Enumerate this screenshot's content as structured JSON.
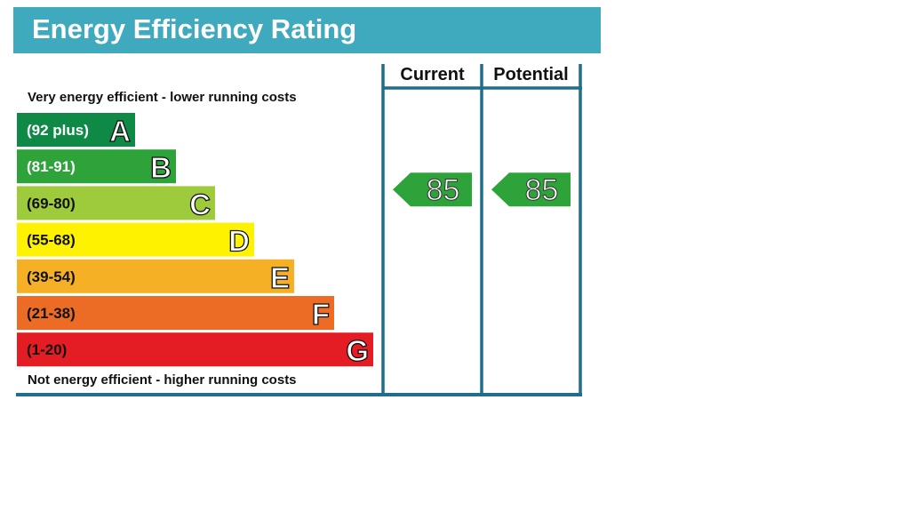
{
  "title": "Energy Efficiency Rating",
  "colors": {
    "title_bar": "#3fa9bd",
    "frame": "#1e6e8c"
  },
  "chart_data": {
    "type": "bar",
    "title": "Energy Efficiency Rating",
    "top_note": "Very energy efficient - lower running costs",
    "bottom_note": "Not energy efficient - higher running costs",
    "bands": [
      {
        "letter": "A",
        "range": "(92 plus)",
        "color": "#0f8a46",
        "text_color": "#ffffff"
      },
      {
        "letter": "B",
        "range": "(81-91)",
        "color": "#2ea33a",
        "text_color": "#ffffff"
      },
      {
        "letter": "C",
        "range": "(69-80)",
        "color": "#9dcb3c",
        "text_color": "#111111"
      },
      {
        "letter": "D",
        "range": "(55-68)",
        "color": "#fff200",
        "text_color": "#111111"
      },
      {
        "letter": "E",
        "range": "(39-54)",
        "color": "#f6b026",
        "text_color": "#111111"
      },
      {
        "letter": "F",
        "range": "(21-38)",
        "color": "#ec6c25",
        "text_color": "#111111"
      },
      {
        "letter": "G",
        "range": "(1-20)",
        "color": "#e31d23",
        "text_color": "#111111"
      }
    ],
    "columns": [
      {
        "header": "Current",
        "value": 85,
        "band": "B",
        "color": "#2ea33a"
      },
      {
        "header": "Potential",
        "value": 85,
        "band": "B",
        "color": "#2ea33a"
      }
    ]
  }
}
